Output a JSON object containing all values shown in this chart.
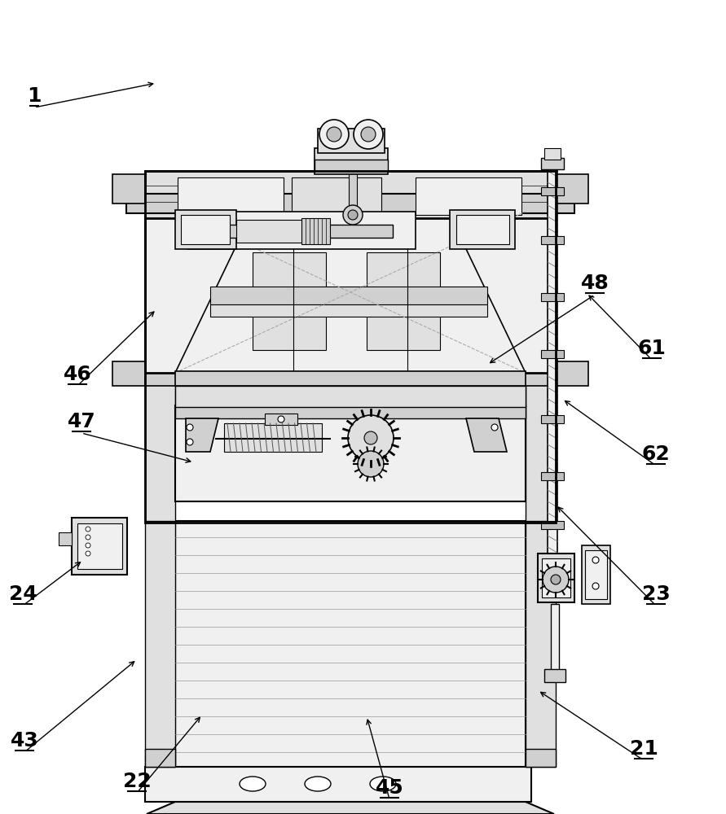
{
  "bg_color": "#ffffff",
  "lc": "#000000",
  "gray1": "#f0f0f0",
  "gray2": "#e0e0e0",
  "gray3": "#d0d0d0",
  "gray4": "#c0c0c0",
  "gray5": "#b0b0b0",
  "label_fontsize": 18,
  "label_fontweight": "bold",
  "figsize": [
    8.91,
    10.0
  ],
  "dpi": 100,
  "annotations": [
    [
      "22",
      168,
      960,
      248,
      878
    ],
    [
      "43",
      30,
      910,
      168,
      810
    ],
    [
      "45",
      478,
      968,
      450,
      880
    ],
    [
      "21",
      790,
      920,
      660,
      848
    ],
    [
      "24",
      28,
      730,
      102,
      688
    ],
    [
      "23",
      805,
      730,
      682,
      620
    ],
    [
      "62",
      805,
      558,
      690,
      490
    ],
    [
      "47",
      100,
      518,
      238,
      568
    ],
    [
      "46",
      95,
      460,
      192,
      380
    ],
    [
      "61",
      800,
      428,
      720,
      360
    ],
    [
      "48",
      730,
      348,
      598,
      448
    ],
    [
      "1",
      42,
      118,
      192,
      102
    ]
  ]
}
